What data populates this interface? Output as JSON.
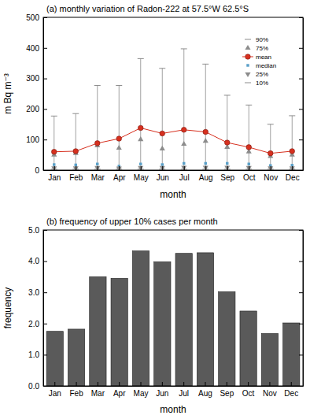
{
  "chart_data": [
    {
      "type": "box",
      "title": "(a) monthly variation of Radon-222 at 57.5°W 62.5°S",
      "x_label": "month",
      "y_label": "m Bq m⁻³",
      "categories": [
        "Jan",
        "Feb",
        "Mar",
        "Apr",
        "May",
        "Jun",
        "Jul",
        "Aug",
        "Sep",
        "Oct",
        "Nov",
        "Dec"
      ],
      "series": [
        {
          "name": "90%",
          "color": "#808080",
          "marker": "dash",
          "values": [
            177,
            185,
            277,
            277,
            365,
            333,
            397,
            347,
            245,
            213,
            150,
            178
          ]
        },
        {
          "name": "75%",
          "color": "#8c8c8c",
          "marker": "triangle",
          "values": [
            50,
            55,
            80,
            72,
            100,
            70,
            85,
            95,
            75,
            60,
            45,
            50
          ]
        },
        {
          "name": "mean",
          "color": "#d7301f",
          "marker": "circle",
          "line_style": "solid",
          "values": [
            60,
            62,
            88,
            103,
            138,
            120,
            132,
            125,
            90,
            75,
            55,
            62
          ]
        },
        {
          "name": "median",
          "color": "#5aa0c8",
          "marker": "square",
          "values": [
            18,
            17,
            20,
            13,
            20,
            18,
            22,
            22,
            22,
            20,
            15,
            16
          ]
        },
        {
          "name": "25%",
          "color": "#8c8c8c",
          "marker": "triangle-down",
          "values": [
            7,
            7,
            8,
            6,
            8,
            8,
            9,
            9,
            9,
            8,
            7,
            7
          ]
        },
        {
          "name": "10%",
          "color": "#808080",
          "marker": "dash",
          "values": [
            3,
            3,
            3,
            3,
            3,
            3,
            3,
            3,
            3,
            3,
            3,
            3
          ]
        }
      ],
      "ylim": [
        0,
        500
      ],
      "yticks": [
        0,
        100,
        200,
        300,
        400,
        500
      ],
      "legend": "top-right"
    },
    {
      "type": "bar",
      "title": "(b) frequency of upper 10% cases per month",
      "x_label": "month",
      "y_label": "frequency",
      "categories": [
        "Jan",
        "Feb",
        "Mar",
        "Apr",
        "May",
        "Jun",
        "Jul",
        "Aug",
        "Sep",
        "Oct",
        "Nov",
        "Dec"
      ],
      "values": [
        1.75,
        1.82,
        3.5,
        3.45,
        4.33,
        3.98,
        4.25,
        4.27,
        3.02,
        2.4,
        1.68,
        2.02
      ],
      "color": "#5a5a5a",
      "ylim": [
        0,
        5
      ],
      "yticks": [
        {
          "value": 0,
          "label": "0.0"
        },
        {
          "value": 1,
          "label": "1.0"
        },
        {
          "value": 2,
          "label": "2.0"
        },
        {
          "value": 3,
          "label": "3.0"
        },
        {
          "value": 4,
          "label": "4.0"
        },
        {
          "value": 5,
          "label": "5.0"
        }
      ]
    }
  ]
}
